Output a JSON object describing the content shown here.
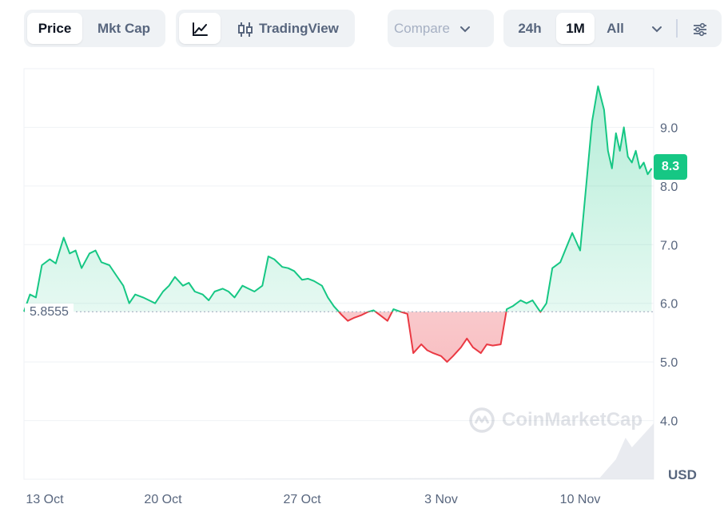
{
  "toolbar": {
    "price_label": "Price",
    "mktcap_label": "Mkt Cap",
    "tradingview_label": "TradingView",
    "compare_label": "Compare",
    "range_24h": "24h",
    "range_1m": "1M",
    "range_all": "All"
  },
  "icons": {
    "line_chart": "line-chart-icon",
    "candles": "candlestick-icon",
    "compare_chevron": "chevron-down-icon",
    "range_chevron": "chevron-down-icon",
    "settings": "sliders-icon"
  },
  "colors": {
    "up": "#16c784",
    "down": "#ea3943",
    "active_range": "#ffffff"
  },
  "watermark": "CoinMarketCap",
  "baseline_label": "5.8555",
  "current_price_label": "8.3",
  "currency_label": "USD",
  "chart_data": {
    "type": "area",
    "baseline": 5.8555,
    "current": 8.3,
    "ylim": [
      3.0,
      10.0
    ],
    "y_ticks": [
      "4.0",
      "5.0",
      "6.0",
      "7.0",
      "8.0",
      "9.0"
    ],
    "x_ticks": [
      "13 Oct",
      "20 Oct",
      "27 Oct",
      "3 Nov",
      "10 Nov"
    ],
    "x_tick_days": [
      0,
      7,
      14,
      21,
      28
    ],
    "xlim": [
      0,
      31.7
    ],
    "series": [
      {
        "x": [
          0,
          0.3,
          0.6,
          0.9,
          1.3,
          1.6,
          2.0,
          2.3,
          2.6,
          2.9,
          3.3,
          3.6,
          3.9,
          4.3,
          4.6,
          5.0,
          5.3,
          5.6,
          6.0,
          6.3,
          6.6,
          7.0,
          7.3,
          7.6,
          8.0,
          8.3,
          8.6,
          9.0,
          9.3,
          9.6,
          10.0,
          10.3,
          10.6,
          11.0,
          11.3,
          11.6,
          12.0,
          12.3,
          12.6,
          13.0,
          13.3,
          13.6,
          14.0,
          14.3,
          14.6,
          15.0,
          15.3,
          15.6,
          16.0,
          16.3,
          16.6,
          17.0,
          17.3,
          17.6,
          18.0,
          18.3,
          18.6,
          19.0,
          19.3,
          19.6,
          20.0,
          20.3,
          20.6,
          21.0,
          21.3,
          21.6,
          22.0,
          22.3,
          22.6,
          23.0,
          23.3,
          23.6,
          24.0,
          24.3,
          24.6,
          25.0,
          25.3,
          25.6,
          26.0,
          26.3,
          26.6,
          27.0,
          27.3,
          27.6,
          28.0,
          28.3,
          28.6,
          28.9,
          29.2,
          29.4,
          29.6,
          29.8,
          30.0,
          30.2,
          30.4,
          30.6,
          30.8,
          31.0,
          31.2,
          31.4,
          31.6
        ],
        "y": [
          5.86,
          6.15,
          6.1,
          6.65,
          6.75,
          6.68,
          7.12,
          6.85,
          6.9,
          6.6,
          6.85,
          6.9,
          6.7,
          6.65,
          6.5,
          6.3,
          6.0,
          6.15,
          6.1,
          6.05,
          6.0,
          6.2,
          6.3,
          6.45,
          6.3,
          6.35,
          6.2,
          6.15,
          6.05,
          6.2,
          6.25,
          6.2,
          6.1,
          6.3,
          6.25,
          6.2,
          6.3,
          6.8,
          6.75,
          6.62,
          6.6,
          6.55,
          6.4,
          6.42,
          6.38,
          6.3,
          6.1,
          5.95,
          5.8,
          5.7,
          5.75,
          5.8,
          5.85,
          5.88,
          5.78,
          5.7,
          5.9,
          5.85,
          5.82,
          5.15,
          5.3,
          5.2,
          5.15,
          5.1,
          5.0,
          5.1,
          5.25,
          5.4,
          5.25,
          5.15,
          5.3,
          5.28,
          5.3,
          5.9,
          5.95,
          6.05,
          6.0,
          6.05,
          5.85,
          6.0,
          6.6,
          6.7,
          6.95,
          7.2,
          6.9,
          8.0,
          9.1,
          9.7,
          9.3,
          8.6,
          8.3,
          8.9,
          8.6,
          9.0,
          8.5,
          8.4,
          8.6,
          8.3,
          8.4,
          8.2,
          8.3
        ]
      }
    ]
  }
}
